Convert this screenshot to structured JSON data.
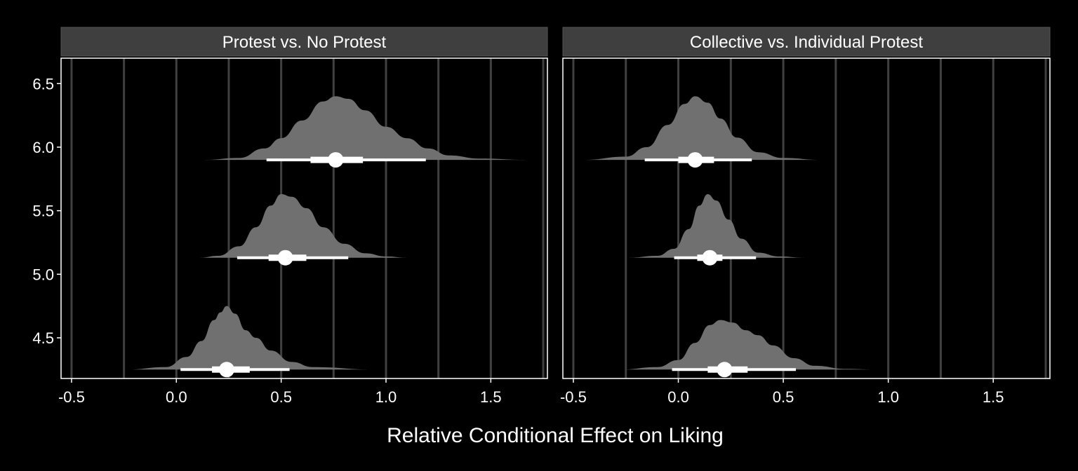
{
  "chart_data": {
    "type": "halfeye",
    "xlabel": "Relative Conditional Effect on Liking",
    "ylabel": "",
    "xlim": [
      -0.55,
      1.77
    ],
    "ylim": [
      4.18,
      6.7
    ],
    "x_ticks": [
      -0.5,
      0.0,
      0.5,
      1.0,
      1.5
    ],
    "x_tick_labels": [
      "-0.5",
      "0.0",
      "0.5",
      "1.0",
      "1.5"
    ],
    "x_gridlines": [
      -0.5,
      -0.25,
      0.0,
      0.25,
      0.5,
      0.75,
      1.0,
      1.25,
      1.5,
      1.75
    ],
    "y_ticks": [
      4.5,
      5.0,
      5.5,
      6.0,
      6.5
    ],
    "y_tick_labels": [
      "4.5",
      "5.0",
      "5.5",
      "6.0",
      "6.5"
    ],
    "density_scale": 0.5,
    "colors": {
      "background": "#000000",
      "strip": "#3f3f3f",
      "density": "#707070",
      "interval": "#ffffff",
      "grid": "#404040"
    },
    "panels": [
      {
        "title": "Protest vs. No Protest",
        "distributions": [
          {
            "y": 5.9,
            "median": 0.76,
            "interval_66": [
              0.64,
              0.89
            ],
            "interval_95": [
              0.43,
              1.19
            ],
            "range": [
              0.13,
              1.67
            ],
            "density": [
              [
                0.13,
                0.0
              ],
              [
                0.3,
                0.03
              ],
              [
                0.42,
                0.18
              ],
              [
                0.5,
                0.34
              ],
              [
                0.6,
                0.62
              ],
              [
                0.7,
                0.92
              ],
              [
                0.76,
                1.0
              ],
              [
                0.82,
                0.96
              ],
              [
                0.9,
                0.78
              ],
              [
                1.0,
                0.52
              ],
              [
                1.1,
                0.34
              ],
              [
                1.2,
                0.18
              ],
              [
                1.3,
                0.07
              ],
              [
                1.45,
                0.02
              ],
              [
                1.67,
                0.0
              ]
            ]
          },
          {
            "y": 5.13,
            "median": 0.52,
            "interval_66": [
              0.44,
              0.62
            ],
            "interval_95": [
              0.29,
              0.82
            ],
            "range": [
              0.11,
              1.1
            ],
            "density": [
              [
                0.11,
                0.0
              ],
              [
                0.2,
                0.03
              ],
              [
                0.3,
                0.18
              ],
              [
                0.38,
                0.48
              ],
              [
                0.45,
                0.82
              ],
              [
                0.5,
                1.0
              ],
              [
                0.55,
                0.96
              ],
              [
                0.62,
                0.78
              ],
              [
                0.7,
                0.48
              ],
              [
                0.8,
                0.22
              ],
              [
                0.9,
                0.07
              ],
              [
                1.0,
                0.02
              ],
              [
                1.1,
                0.0
              ]
            ]
          },
          {
            "y": 4.25,
            "median": 0.24,
            "interval_66": [
              0.17,
              0.35
            ],
            "interval_95": [
              0.02,
              0.54
            ],
            "range": [
              -0.24,
              0.95
            ],
            "density": [
              [
                -0.24,
                0.0
              ],
              [
                -0.05,
                0.04
              ],
              [
                0.05,
                0.2
              ],
              [
                0.12,
                0.45
              ],
              [
                0.18,
                0.78
              ],
              [
                0.21,
                0.9
              ],
              [
                0.24,
                1.0
              ],
              [
                0.28,
                0.88
              ],
              [
                0.33,
                0.62
              ],
              [
                0.38,
                0.5
              ],
              [
                0.45,
                0.3
              ],
              [
                0.55,
                0.12
              ],
              [
                0.65,
                0.04
              ],
              [
                0.95,
                0.0
              ]
            ]
          }
        ]
      },
      {
        "title": "Collective vs. Individual Protest",
        "distributions": [
          {
            "y": 5.9,
            "median": 0.08,
            "interval_66": [
              0.0,
              0.17
            ],
            "interval_95": [
              -0.16,
              0.35
            ],
            "range": [
              -0.45,
              0.68
            ],
            "density": [
              [
                -0.45,
                0.0
              ],
              [
                -0.25,
                0.05
              ],
              [
                -0.15,
                0.2
              ],
              [
                -0.05,
                0.55
              ],
              [
                0.03,
                0.88
              ],
              [
                0.08,
                1.0
              ],
              [
                0.14,
                0.9
              ],
              [
                0.2,
                0.65
              ],
              [
                0.28,
                0.35
              ],
              [
                0.38,
                0.12
              ],
              [
                0.5,
                0.03
              ],
              [
                0.68,
                0.0
              ]
            ]
          },
          {
            "y": 5.13,
            "median": 0.15,
            "interval_66": [
              0.09,
              0.21
            ],
            "interval_95": [
              -0.02,
              0.37
            ],
            "range": [
              -0.24,
              0.6
            ],
            "density": [
              [
                -0.24,
                0.0
              ],
              [
                -0.1,
                0.03
              ],
              [
                -0.02,
                0.14
              ],
              [
                0.05,
                0.45
              ],
              [
                0.1,
                0.82
              ],
              [
                0.14,
                1.0
              ],
              [
                0.18,
                0.9
              ],
              [
                0.24,
                0.6
              ],
              [
                0.3,
                0.3
              ],
              [
                0.38,
                0.08
              ],
              [
                0.48,
                0.02
              ],
              [
                0.6,
                0.0
              ]
            ]
          },
          {
            "y": 4.25,
            "median": 0.22,
            "interval_66": [
              0.14,
              0.33
            ],
            "interval_95": [
              -0.03,
              0.56
            ],
            "range": [
              -0.28,
              0.95
            ],
            "density": [
              [
                -0.28,
                0.0
              ],
              [
                -0.1,
                0.04
              ],
              [
                0.0,
                0.15
              ],
              [
                0.08,
                0.42
              ],
              [
                0.15,
                0.7
              ],
              [
                0.2,
                0.78
              ],
              [
                0.26,
                0.74
              ],
              [
                0.32,
                0.62
              ],
              [
                0.38,
                0.54
              ],
              [
                0.45,
                0.38
              ],
              [
                0.55,
                0.18
              ],
              [
                0.65,
                0.06
              ],
              [
                0.8,
                0.01
              ],
              [
                0.95,
                0.0
              ]
            ]
          }
        ]
      }
    ]
  }
}
